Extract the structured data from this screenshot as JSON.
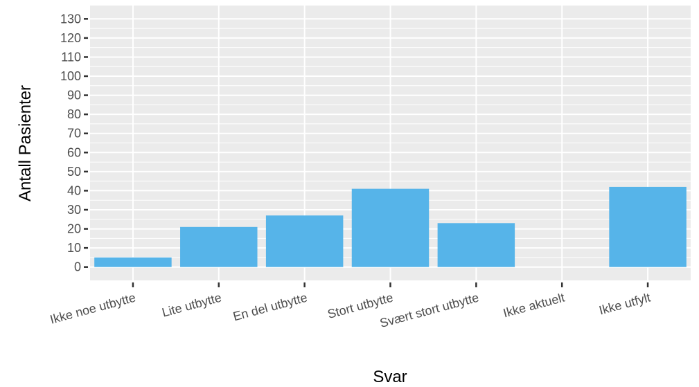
{
  "chart_data": {
    "type": "bar",
    "xlabel": "Svar",
    "ylabel": "Antall Pasienter",
    "categories": [
      "Ikke noe utbytte",
      "Lite utbytte",
      "En del utbytte",
      "Stort utbytte",
      "Svært stort utbytte",
      "Ikke aktuelt",
      "Ikke utfylt"
    ],
    "values": [
      5,
      21,
      27,
      41,
      23,
      0,
      42
    ],
    "ylim": [
      -7,
      137
    ],
    "yticks": [
      0,
      10,
      20,
      30,
      40,
      50,
      60,
      70,
      80,
      90,
      100,
      110,
      120,
      130
    ],
    "grid": true,
    "bar_color": "#56B4E9",
    "panel_background": "#EBEBEB",
    "grid_color": "#FFFFFF"
  }
}
